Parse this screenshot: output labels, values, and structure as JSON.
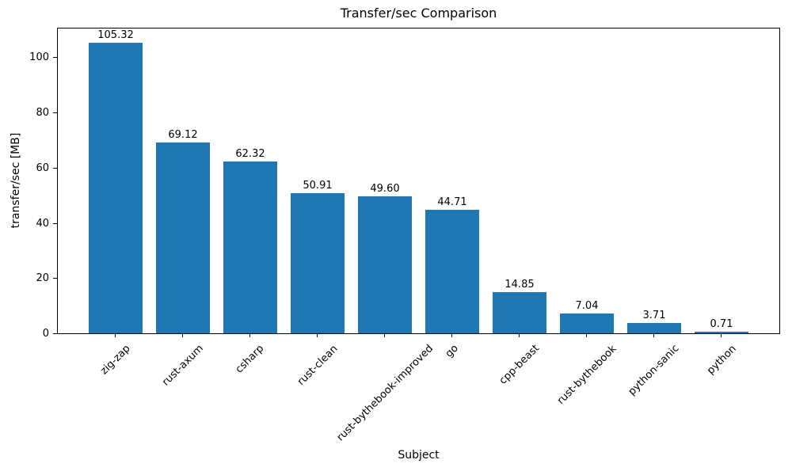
{
  "chart_data": {
    "type": "bar",
    "title": "Transfer/sec Comparison",
    "xlabel": "Subject",
    "ylabel": "transfer/sec [MB]",
    "categories": [
      "zig-zap",
      "rust-axum",
      "csharp",
      "rust-clean",
      "rust-bythebook-improved",
      "go",
      "cpp-beast",
      "rust-bythebook",
      "python-sanic",
      "python"
    ],
    "values": [
      105.32,
      69.12,
      62.32,
      50.91,
      49.6,
      44.71,
      14.85,
      7.04,
      3.71,
      0.71
    ],
    "value_labels": [
      "105.32",
      "69.12",
      "62.32",
      "50.91",
      "49.60",
      "44.71",
      "14.85",
      "7.04",
      "3.71",
      "0.71"
    ],
    "yticks": [
      0,
      20,
      40,
      60,
      80,
      100
    ],
    "ylim": [
      0,
      111
    ],
    "bar_color": "#1f77b4",
    "grid": false,
    "legend": false
  }
}
